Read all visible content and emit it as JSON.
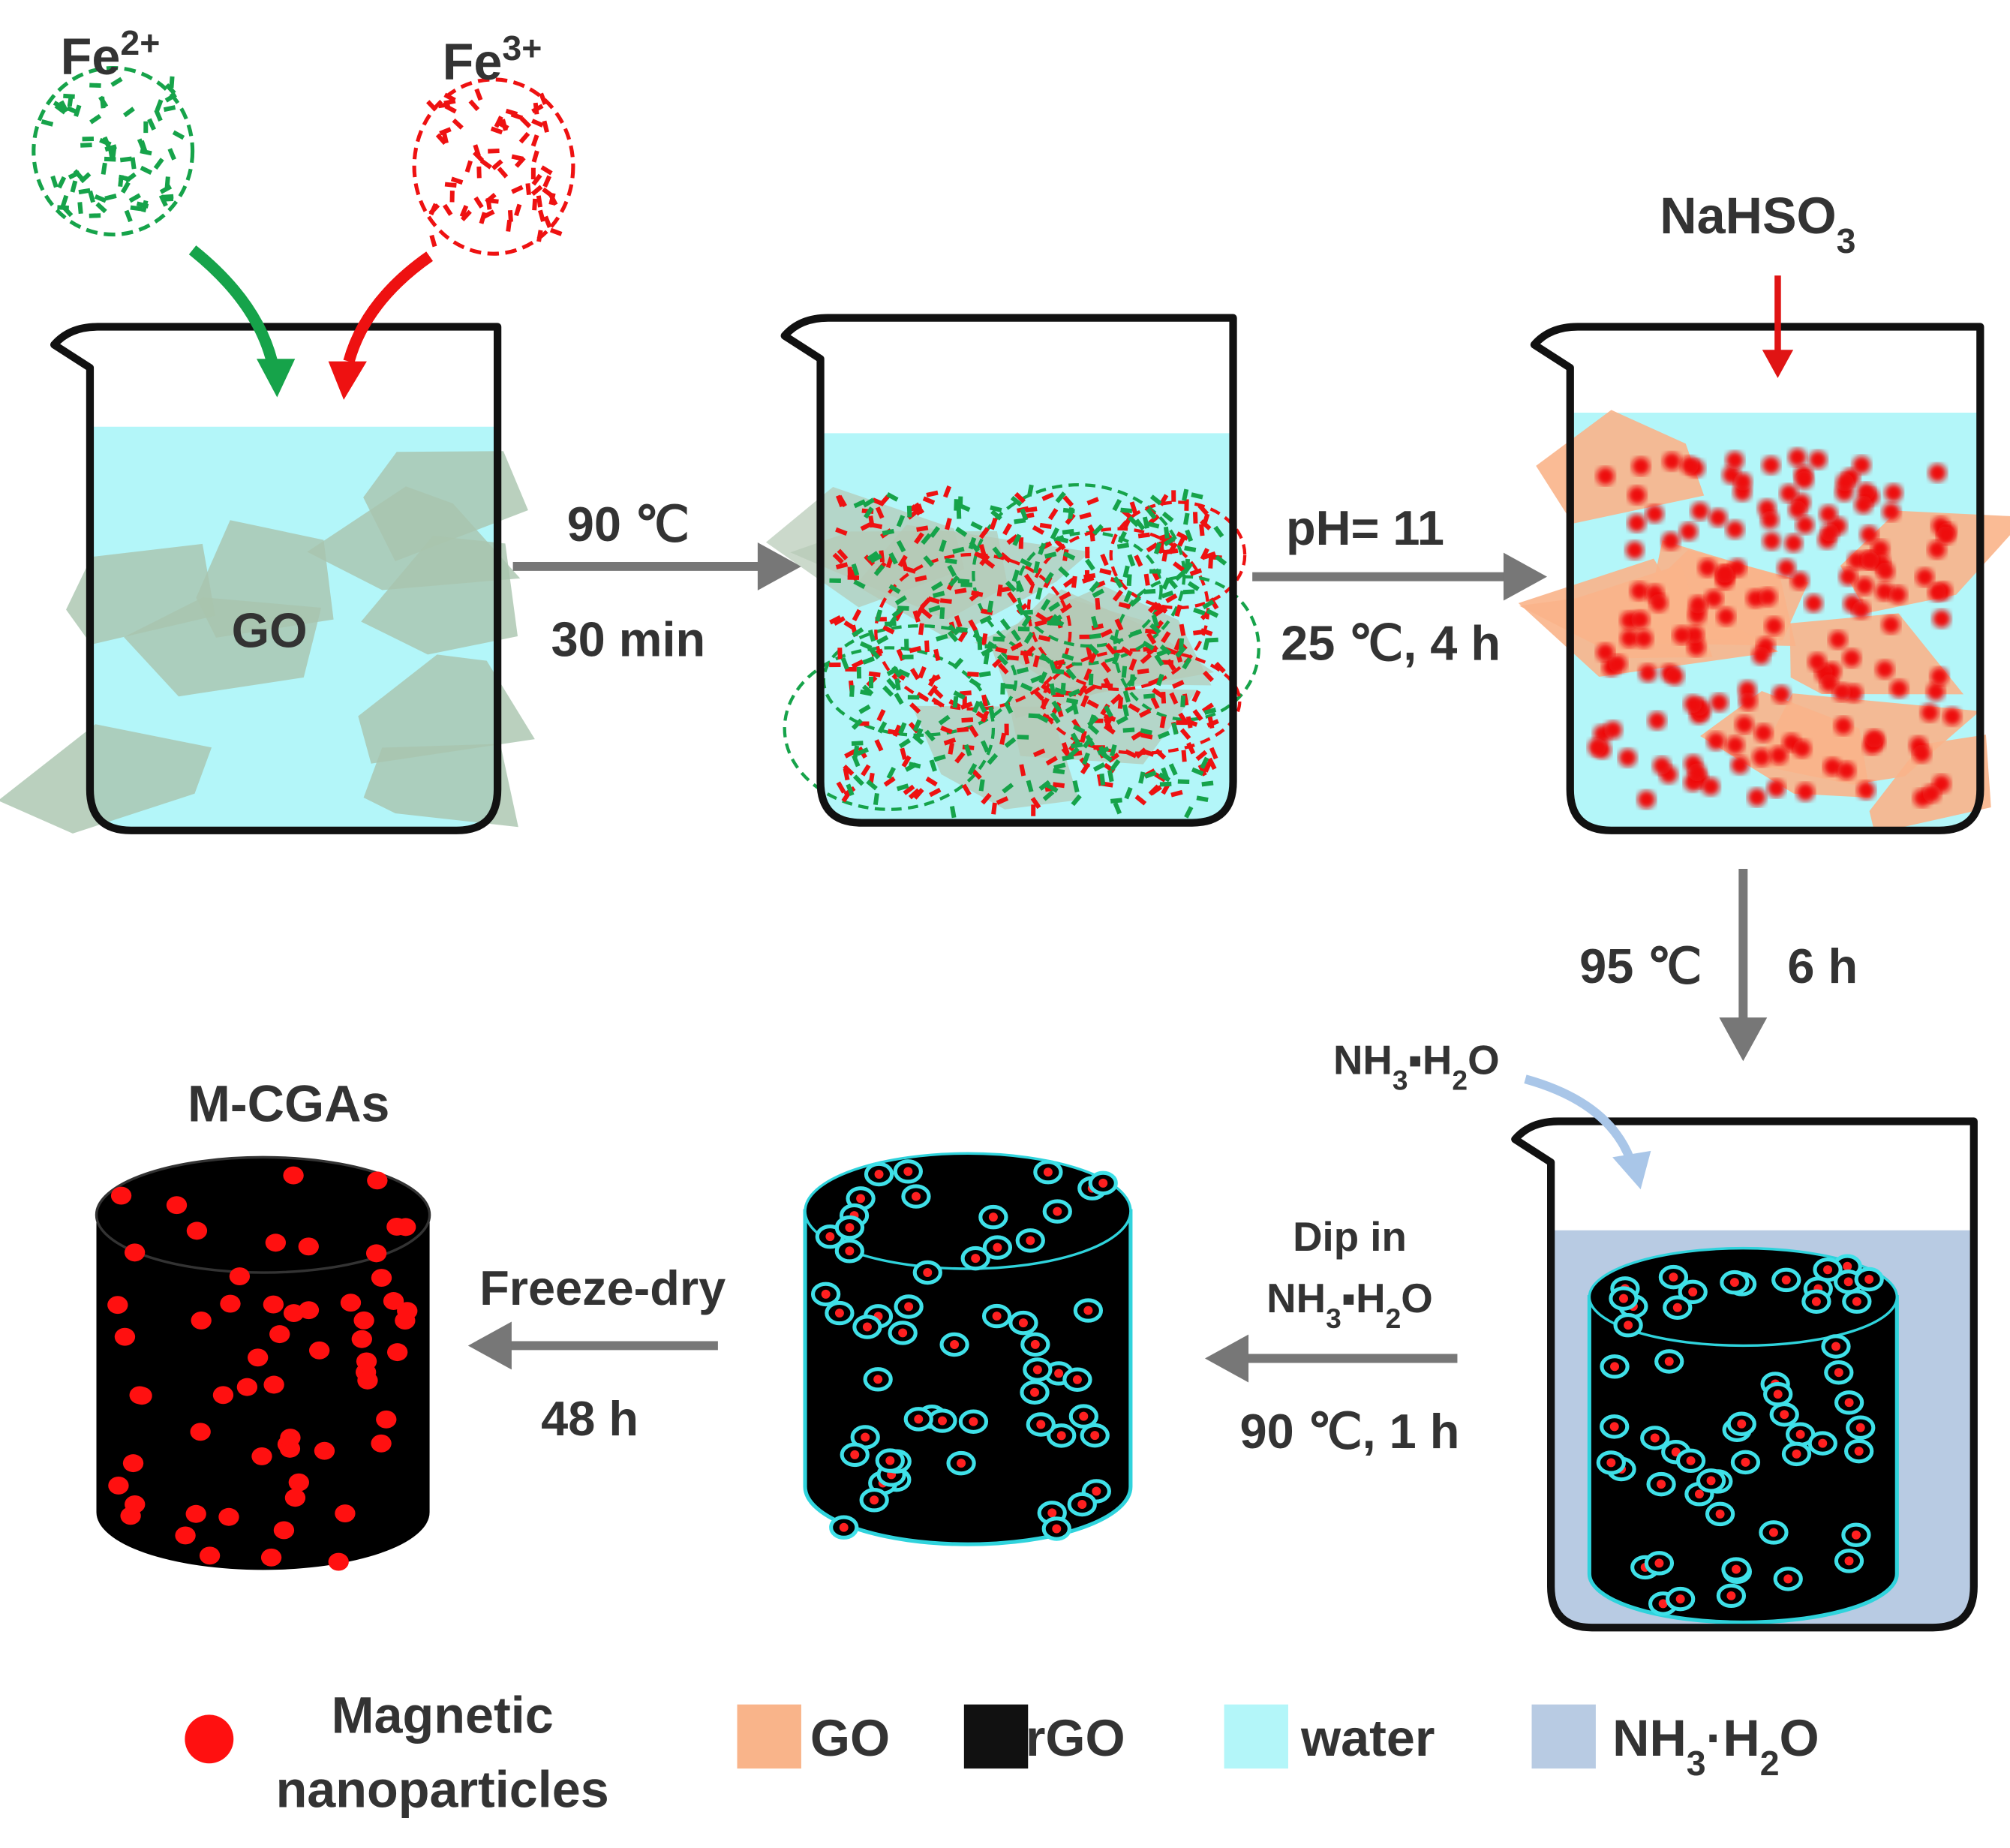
{
  "reagents": {
    "fe2": [
      "Fe",
      "2+"
    ],
    "fe3": [
      "Fe",
      "3+"
    ],
    "nahso3": [
      "NaHSO",
      "3"
    ],
    "nh3h2o": [
      "NH",
      "3",
      "▪H",
      "2",
      "O"
    ]
  },
  "beaker_label": "GO",
  "steps": [
    {
      "line1": "90 ℃",
      "line2": "30 min"
    },
    {
      "line1": "pH= 11",
      "line2": "25 ℃, 4 h"
    },
    {
      "line1": "95 ℃",
      "line2": "6 h"
    },
    {
      "line1": "Dip in",
      "formula": [
        "NH",
        "3",
        "▪H",
        "2",
        "O"
      ],
      "line2": "90 ℃, 1 h"
    },
    {
      "line1": "Freeze-dry",
      "line2": "48 h"
    }
  ],
  "product": "M-CGAs",
  "legend": [
    {
      "label": [
        "Magnetic",
        "nanoparticles"
      ],
      "color": "#ff1010"
    },
    {
      "label": [
        "GO"
      ],
      "color": "#f9b48a"
    },
    {
      "label": [
        "rGO"
      ],
      "color": "#111111"
    },
    {
      "label": [
        "water"
      ],
      "color": "#b3f6f9"
    },
    {
      "formula": [
        "NH",
        "3",
        "·H",
        "2",
        "O"
      ],
      "color": "#b8cbe3"
    }
  ]
}
